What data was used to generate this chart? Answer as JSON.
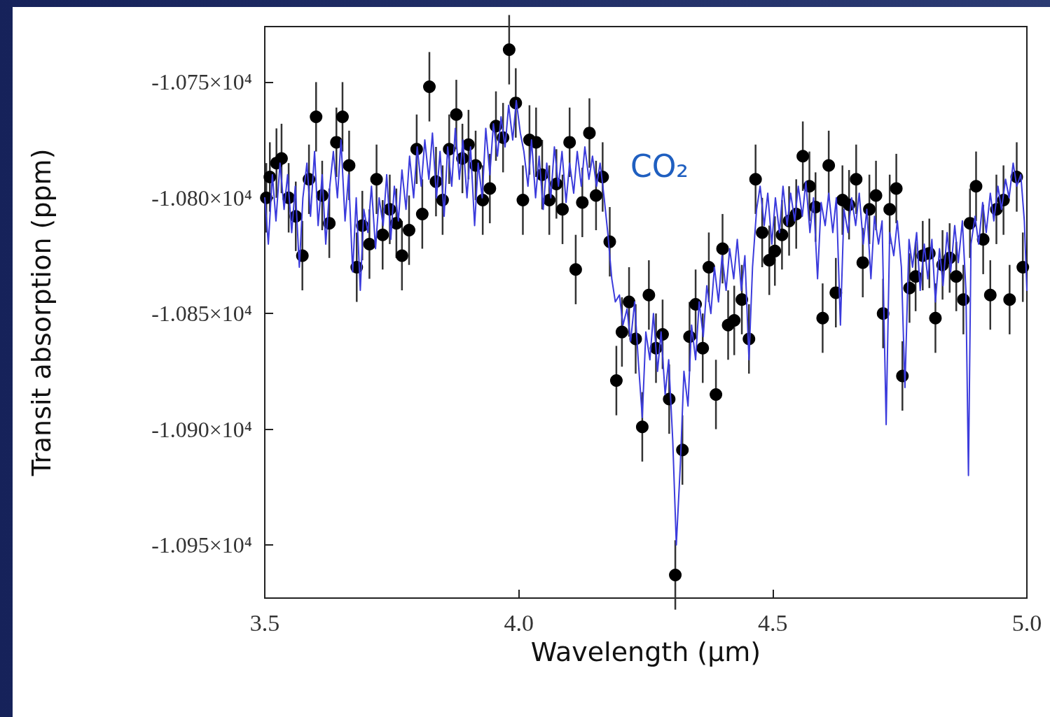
{
  "chart_data": {
    "type": "scatter",
    "xlabel": "Wavelength (µm)",
    "ylabel": "Transit absorption (ppm)",
    "annotations": [
      "CO₂"
    ],
    "xlim": [
      3.5,
      5.0
    ],
    "xticks": [
      3.5,
      {
        "value": 4,
        "label": "4.0"
      },
      4.5,
      {
        "value": 5,
        "label": "5.0"
      }
    ],
    "ylim": [
      -10973,
      -10726
    ],
    "yticks": [
      {
        "value": -10950,
        "label": "-1.095×10⁴"
      },
      {
        "value": -10900,
        "label": "-1.090×10⁴"
      },
      {
        "value": -10850,
        "label": "-1.085×10⁴"
      },
      {
        "value": -10800,
        "label": "-1.080×10⁴"
      },
      {
        "value": -10750,
        "label": "-1.075×10⁴"
      }
    ],
    "grid": false,
    "series": [
      {
        "type": "line",
        "marker": "none",
        "line_style": "solid",
        "color": "#3b3bdc",
        "x": [
          3.5,
          3.507,
          3.515,
          3.522,
          3.53,
          3.538,
          3.545,
          3.553,
          3.56,
          3.568,
          3.575,
          3.583,
          3.59,
          3.598,
          3.605,
          3.613,
          3.62,
          3.628,
          3.635,
          3.643,
          3.65,
          3.658,
          3.665,
          3.673,
          3.68,
          3.688,
          3.695,
          3.703,
          3.71,
          3.718,
          3.725,
          3.733,
          3.74,
          3.748,
          3.755,
          3.763,
          3.77,
          3.778,
          3.785,
          3.793,
          3.8,
          3.808,
          3.815,
          3.823,
          3.83,
          3.838,
          3.845,
          3.853,
          3.86,
          3.868,
          3.875,
          3.883,
          3.89,
          3.898,
          3.905,
          3.913,
          3.92,
          3.928,
          3.935,
          3.943,
          3.95,
          3.958,
          3.965,
          3.973,
          3.98,
          3.988,
          3.995,
          4.003,
          4.01,
          4.018,
          4.025,
          4.033,
          4.04,
          4.048,
          4.055,
          4.063,
          4.07,
          4.078,
          4.085,
          4.093,
          4.1,
          4.108,
          4.115,
          4.123,
          4.13,
          4.138,
          4.145,
          4.153,
          4.16,
          4.168,
          4.175,
          4.183,
          4.19,
          4.198,
          4.205,
          4.213,
          4.22,
          4.228,
          4.235,
          4.243,
          4.25,
          4.258,
          4.265,
          4.273,
          4.28,
          4.288,
          4.295,
          4.303,
          4.31,
          4.318,
          4.325,
          4.333,
          4.34,
          4.348,
          4.355,
          4.363,
          4.37,
          4.378,
          4.385,
          4.393,
          4.4,
          4.408,
          4.415,
          4.423,
          4.43,
          4.438,
          4.445,
          4.453,
          4.46,
          4.468,
          4.475,
          4.483,
          4.49,
          4.498,
          4.505,
          4.513,
          4.52,
          4.528,
          4.535,
          4.543,
          4.55,
          4.558,
          4.565,
          4.573,
          4.58,
          4.588,
          4.595,
          4.603,
          4.61,
          4.618,
          4.625,
          4.633,
          4.64,
          4.648,
          4.655,
          4.663,
          4.67,
          4.678,
          4.685,
          4.693,
          4.7,
          4.708,
          4.715,
          4.723,
          4.73,
          4.738,
          4.745,
          4.753,
          4.76,
          4.768,
          4.775,
          4.783,
          4.79,
          4.798,
          4.805,
          4.813,
          4.82,
          4.828,
          4.835,
          4.843,
          4.85,
          4.858,
          4.865,
          4.873,
          4.88,
          4.885,
          4.89,
          4.898,
          4.905,
          4.913,
          4.92,
          4.928,
          4.935,
          4.943,
          4.95,
          4.958,
          4.965,
          4.973,
          4.98,
          4.988,
          4.995,
          5.0
        ],
        "values": [
          -10800,
          -10820,
          -10790,
          -10810,
          -10785,
          -10805,
          -10790,
          -10815,
          -10795,
          -10830,
          -10800,
          -10785,
          -10808,
          -10780,
          -10812,
          -10790,
          -10820,
          -10795,
          -10780,
          -10800,
          -10775,
          -10810,
          -10790,
          -10832,
          -10800,
          -10840,
          -10805,
          -10815,
          -10795,
          -10822,
          -10800,
          -10812,
          -10790,
          -10818,
          -10795,
          -10810,
          -10788,
          -10805,
          -10782,
          -10800,
          -10778,
          -10795,
          -10775,
          -10792,
          -10772,
          -10800,
          -10780,
          -10808,
          -10778,
          -10795,
          -10770,
          -10792,
          -10775,
          -10800,
          -10778,
          -10812,
          -10785,
          -10800,
          -10770,
          -10790,
          -10768,
          -10782,
          -10765,
          -10778,
          -10760,
          -10775,
          -10758,
          -10772,
          -10780,
          -10795,
          -10775,
          -10800,
          -10782,
          -10805,
          -10785,
          -10800,
          -10778,
          -10795,
          -10780,
          -10802,
          -10785,
          -10798,
          -10780,
          -10795,
          -10778,
          -10792,
          -10782,
          -10795,
          -10785,
          -10800,
          -10815,
          -10835,
          -10845,
          -10842,
          -10855,
          -10848,
          -10862,
          -10845,
          -10870,
          -10895,
          -10858,
          -10870,
          -10850,
          -10875,
          -10858,
          -10885,
          -10870,
          -10905,
          -10950,
          -10915,
          -10875,
          -10890,
          -10855,
          -10870,
          -10845,
          -10860,
          -10838,
          -10850,
          -10830,
          -10845,
          -10825,
          -10840,
          -10822,
          -10835,
          -10818,
          -10840,
          -10825,
          -10870,
          -10830,
          -10805,
          -10795,
          -10812,
          -10798,
          -10820,
          -10800,
          -10815,
          -10795,
          -10812,
          -10798,
          -10810,
          -10795,
          -10808,
          -10793,
          -10815,
          -10800,
          -10835,
          -10802,
          -10812,
          -10798,
          -10815,
          -10800,
          -10855,
          -10805,
          -10815,
          -10800,
          -10812,
          -10798,
          -10820,
          -10805,
          -10835,
          -10808,
          -10820,
          -10810,
          -10898,
          -10815,
          -10825,
          -10810,
          -10830,
          -10882,
          -10818,
          -10830,
          -10815,
          -10840,
          -10820,
          -10835,
          -10818,
          -10845,
          -10822,
          -10838,
          -10815,
          -10832,
          -10812,
          -10828,
          -10810,
          -10840,
          -10920,
          -10820,
          -10808,
          -10820,
          -10802,
          -10815,
          -10798,
          -10810,
          -10795,
          -10805,
          -10792,
          -10800,
          -10785,
          -10795,
          -10790,
          -10810,
          -10840
        ]
      },
      {
        "marker": "circle",
        "color": "#000000",
        "x": [
          3.503,
          3.51,
          3.523,
          3.533,
          3.547,
          3.561,
          3.574,
          3.587,
          3.601,
          3.613,
          3.627,
          3.641,
          3.653,
          3.666,
          3.681,
          3.692,
          3.706,
          3.72,
          3.732,
          3.746,
          3.759,
          3.77,
          3.784,
          3.799,
          3.81,
          3.824,
          3.837,
          3.85,
          3.863,
          3.877,
          3.889,
          3.901,
          3.915,
          3.929,
          3.943,
          3.955,
          3.969,
          3.981,
          3.994,
          4.008,
          4.021,
          4.034,
          4.046,
          4.06,
          4.074,
          4.086,
          4.1,
          4.112,
          4.125,
          4.139,
          4.152,
          4.165,
          4.179,
          4.192,
          4.203,
          4.217,
          4.23,
          4.243,
          4.256,
          4.27,
          4.283,
          4.296,
          4.308,
          4.322,
          4.336,
          4.348,
          4.362,
          4.374,
          4.388,
          4.401,
          4.412,
          4.424,
          4.439,
          4.453,
          4.466,
          4.479,
          4.493,
          4.504,
          4.518,
          4.532,
          4.546,
          4.559,
          4.572,
          4.584,
          4.598,
          4.61,
          4.624,
          4.637,
          4.65,
          4.664,
          4.677,
          4.69,
          4.703,
          4.717,
          4.73,
          4.743,
          4.755,
          4.769,
          4.781,
          4.795,
          4.808,
          4.82,
          4.834,
          4.848,
          4.861,
          4.875,
          4.888,
          4.9,
          4.914,
          4.928,
          4.94,
          4.954,
          4.966,
          4.98,
          4.992
        ],
        "values": [
          -10800,
          -10791,
          -10785,
          -10783,
          -10800,
          -10808,
          -10825,
          -10792,
          -10765,
          -10799,
          -10811,
          -10776,
          -10765,
          -10786,
          -10830,
          -10812,
          -10820,
          -10792,
          -10816,
          -10805,
          -10811,
          -10825,
          -10814,
          -10779,
          -10807,
          -10752,
          -10793,
          -10801,
          -10779,
          -10764,
          -10783,
          -10777,
          -10786,
          -10801,
          -10796,
          -10769,
          -10774,
          -10736,
          -10759,
          -10801,
          -10775,
          -10776,
          -10790,
          -10801,
          -10794,
          -10805,
          -10776,
          -10831,
          -10802,
          -10772,
          -10799,
          -10791,
          -10819,
          -10879,
          -10858,
          -10845,
          -10861,
          -10899,
          -10842,
          -10865,
          -10859,
          -10887,
          -10963,
          -10909,
          -10860,
          -10846,
          -10865,
          -10830,
          -10885,
          -10822,
          -10855,
          -10853,
          -10844,
          -10861,
          -10792,
          -10815,
          -10827,
          -10823,
          -10816,
          -10810,
          -10807,
          -10782,
          -10795,
          -10804,
          -10852,
          -10786,
          -10841,
          -10801,
          -10803,
          -10792,
          -10828,
          -10805,
          -10799,
          -10850,
          -10805,
          -10796,
          -10877,
          -10839,
          -10834,
          -10825,
          -10824,
          -10852,
          -10829,
          -10826,
          -10834,
          -10844,
          -10811,
          -10795,
          -10818,
          -10842,
          -10805,
          -10801,
          -10844,
          -10791,
          -10830
        ],
        "errors": [
          15,
          15,
          15,
          15,
          15,
          15,
          15,
          15,
          15,
          15,
          15,
          15,
          15,
          15,
          15,
          15,
          15,
          15,
          15,
          15,
          15,
          15,
          15,
          15,
          15,
          15,
          15,
          15,
          15,
          15,
          15,
          15,
          15,
          15,
          15,
          15,
          15,
          15,
          15,
          15,
          15,
          15,
          15,
          15,
          15,
          15,
          15,
          15,
          15,
          15,
          15,
          15,
          15,
          15,
          15,
          15,
          15,
          15,
          15,
          15,
          15,
          15,
          15,
          15,
          15,
          15,
          15,
          15,
          15,
          15,
          15,
          15,
          15,
          15,
          15,
          15,
          15,
          15,
          15,
          15,
          15,
          15,
          15,
          15,
          15,
          15,
          15,
          15,
          15,
          15,
          15,
          15,
          15,
          15,
          15,
          15,
          15,
          15,
          15,
          15,
          15,
          15,
          15,
          15,
          15,
          15,
          15,
          15,
          15,
          15,
          15,
          15,
          15,
          15,
          15
        ]
      }
    ]
  }
}
